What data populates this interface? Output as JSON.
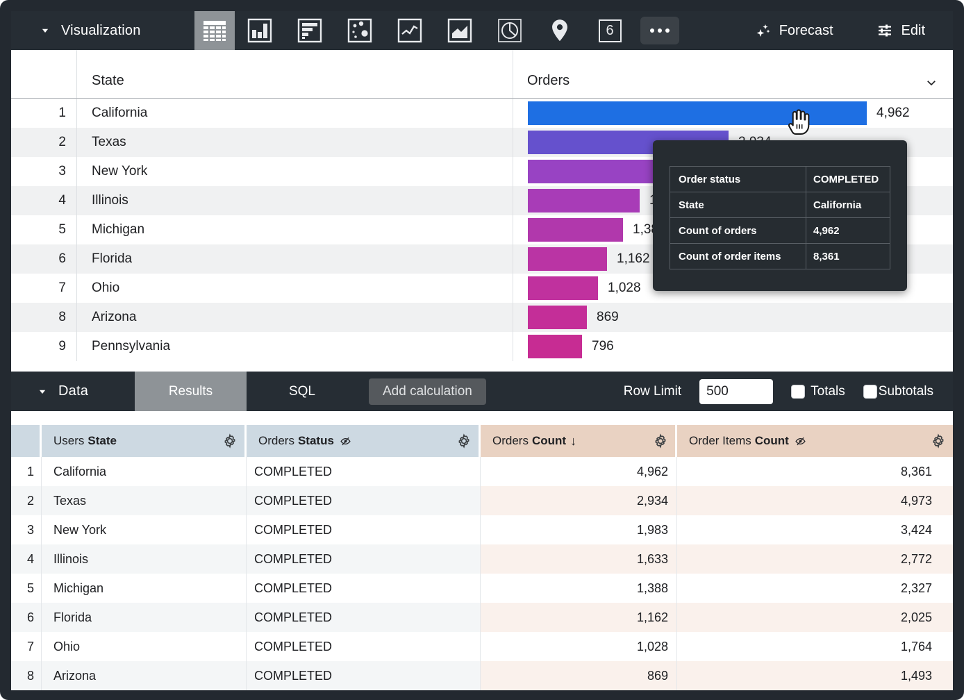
{
  "viz_toolbar": {
    "title": "Visualization",
    "viz_type_icons": [
      "table-chart",
      "column-chart",
      "bar-chart",
      "scatter-plot",
      "line-chart",
      "area-chart",
      "pie-chart",
      "map-pin",
      "single-value",
      "more-options"
    ],
    "single_value_label": "6",
    "forecast_label": "Forecast",
    "edit_label": "Edit"
  },
  "viz_table": {
    "state_header": "State",
    "orders_header": "Orders",
    "rows": [
      {
        "num": "1",
        "state": "California",
        "label": "4,962",
        "value": 4962,
        "color": "#1e6fe3"
      },
      {
        "num": "2",
        "state": "Texas",
        "label": "2,934",
        "value": 2934,
        "color": "#6551cd"
      },
      {
        "num": "3",
        "state": "New York",
        "label": "1,983",
        "value": 1983,
        "color": "#9843c3"
      },
      {
        "num": "4",
        "state": "Illinois",
        "label": "1,633",
        "value": 1633,
        "color": "#a83cb7"
      },
      {
        "num": "5",
        "state": "Michigan",
        "label": "1,388",
        "value": 1388,
        "color": "#b138ac"
      },
      {
        "num": "6",
        "state": "Florida",
        "label": "1,162",
        "value": 1162,
        "color": "#ba34a4"
      },
      {
        "num": "7",
        "state": "Ohio",
        "label": "1,028",
        "value": 1028,
        "color": "#c0319e"
      },
      {
        "num": "8",
        "state": "Arizona",
        "label": "869",
        "value": 869,
        "color": "#c42e98"
      },
      {
        "num": "9",
        "state": "Pennsylvania",
        "label": "796",
        "value": 796,
        "color": "#c72c93"
      }
    ]
  },
  "chart_data": {
    "type": "bar",
    "categories": [
      "California",
      "Texas",
      "New York",
      "Illinois",
      "Michigan",
      "Florida",
      "Ohio",
      "Arizona",
      "Pennsylvania"
    ],
    "values": [
      4962,
      2934,
      1983,
      1633,
      1388,
      1162,
      1028,
      869,
      796
    ],
    "series_label": "Orders",
    "max": 4962
  },
  "tooltip": {
    "rows": [
      {
        "label": "Order status",
        "value": "COMPLETED"
      },
      {
        "label": "State",
        "value": "California"
      },
      {
        "label": "Count of orders",
        "value": "4,962"
      },
      {
        "label": "Count of order items",
        "value": "8,361"
      }
    ]
  },
  "data_toolbar": {
    "title": "Data",
    "tab_results": "Results",
    "tab_sql": "SQL",
    "add_calculation_label": "Add calculation",
    "row_limit_label": "Row Limit",
    "row_limit_value": "500",
    "totals_label": "Totals",
    "subtotals_label": "Subtotals"
  },
  "data_table": {
    "headers": {
      "state": {
        "prefix": "Users",
        "bold": "State"
      },
      "status": {
        "prefix": "Orders",
        "bold": "Status"
      },
      "count": {
        "prefix": "Orders",
        "bold": "Count",
        "sort_arrow": "↓"
      },
      "items": {
        "prefix": "Order Items",
        "bold": "Count"
      }
    },
    "rows": [
      {
        "num": "1",
        "state": "California",
        "status": "COMPLETED",
        "orders_count": "4,962",
        "order_items_count": "8,361"
      },
      {
        "num": "2",
        "state": "Texas",
        "status": "COMPLETED",
        "orders_count": "2,934",
        "order_items_count": "4,973"
      },
      {
        "num": "3",
        "state": "New York",
        "status": "COMPLETED",
        "orders_count": "1,983",
        "order_items_count": "3,424"
      },
      {
        "num": "4",
        "state": "Illinois",
        "status": "COMPLETED",
        "orders_count": "1,633",
        "order_items_count": "2,772"
      },
      {
        "num": "5",
        "state": "Michigan",
        "status": "COMPLETED",
        "orders_count": "1,388",
        "order_items_count": "2,327"
      },
      {
        "num": "6",
        "state": "Florida",
        "status": "COMPLETED",
        "orders_count": "1,162",
        "order_items_count": "2,025"
      },
      {
        "num": "7",
        "state": "Ohio",
        "status": "COMPLETED",
        "orders_count": "1,028",
        "order_items_count": "1,764"
      },
      {
        "num": "8",
        "state": "Arizona",
        "status": "COMPLETED",
        "orders_count": "869",
        "order_items_count": "1,493"
      }
    ]
  },
  "colors": {
    "toolbar_bg": "#262d34",
    "selected_tile": "#8e9397",
    "dimension_header_bg": "#cdd9e2",
    "measure_header_bg": "#e9d2c2",
    "tooltip_bg": "#262c31",
    "top_bar_color": "#1e6fe3"
  }
}
